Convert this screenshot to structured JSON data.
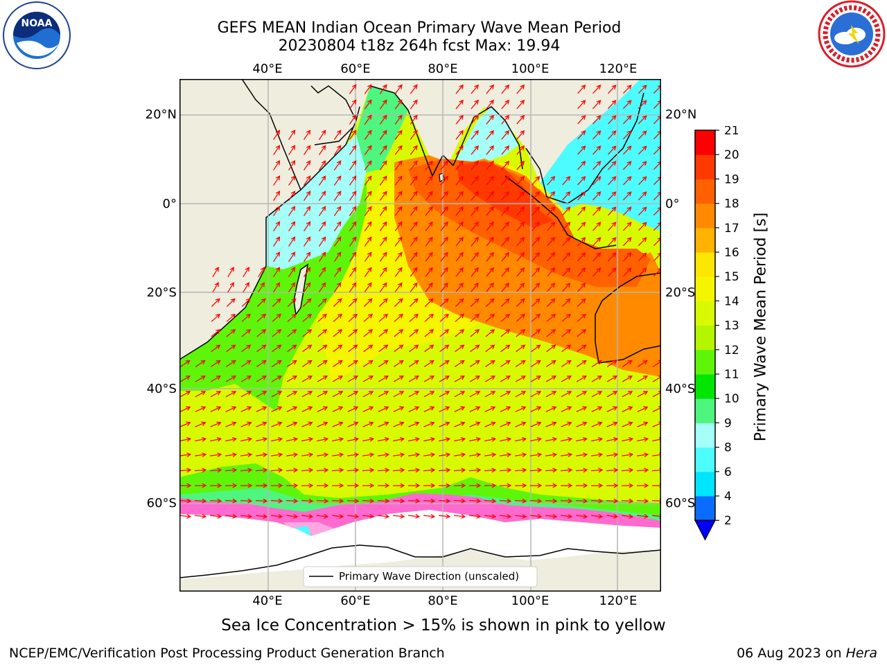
{
  "header": {
    "title_line1": "GEFS MEAN Indian Ocean Primary Wave Mean Period",
    "title_line2": "20230804 t18z 264h fcst   Max: 19.94"
  },
  "logos": {
    "left": {
      "text": "NOAA",
      "ring_text": "NATIONAL OCEANIC AND ATMOSPHERIC ADMINISTRATION · U.S. DEPARTMENT OF COMMERCE"
    },
    "right": {
      "ring_text": "NATIONAL WEATHER SERVICE"
    }
  },
  "map": {
    "lon_labels": [
      "40°E",
      "60°E",
      "80°E",
      "100°E",
      "120°E"
    ],
    "lat_labels": [
      "20°N",
      "0°",
      "20°S",
      "40°S",
      "60°S"
    ],
    "legend_label": "Primary Wave Direction (unscaled)",
    "land_color": "#efedde",
    "arrow_color": "#ff0000",
    "grid_color": "#b5b5b5"
  },
  "colorbar": {
    "label": "Primary Wave Mean Period [s]",
    "ticks": [
      "2",
      "4",
      "6",
      "8",
      "9",
      "10",
      "11",
      "12",
      "13",
      "14",
      "15",
      "16",
      "17",
      "18",
      "19",
      "20",
      "21"
    ],
    "colors": [
      "#0a6cff",
      "#00e5ff",
      "#4dfcff",
      "#a3fff8",
      "#4ef57e",
      "#00e600",
      "#5ef50a",
      "#b4f500",
      "#d8fa00",
      "#f5f500",
      "#ffe600",
      "#ffb300",
      "#ff8a00",
      "#ff6000",
      "#ff3a00",
      "#ff0000"
    ],
    "extend_color": "#0000ff"
  },
  "caption": "Sea Ice Concentration > 15% is shown in pink to yellow",
  "footer": {
    "left": "NCEP/EMC/Verification Post Processing Product Generation Branch",
    "right_date": "06 Aug 2023 on ",
    "right_host": "Hera"
  }
}
